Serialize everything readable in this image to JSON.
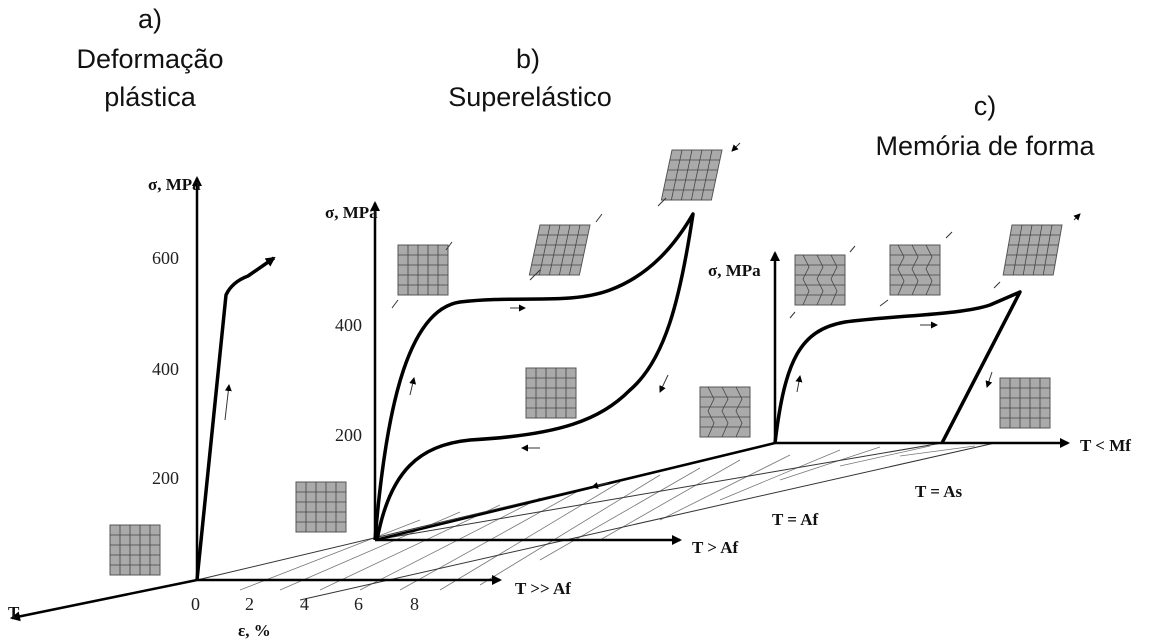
{
  "panels": [
    {
      "label": "a)",
      "title": [
        "Deformação",
        "plástica"
      ],
      "y_label": "σ, MPa",
      "y_ticks": [
        "600",
        "400",
        "200"
      ],
      "x_label": "ε, %",
      "x_ticks": [
        "0",
        "2",
        "4",
        "6",
        "8"
      ],
      "t_label": "T >> Af"
    },
    {
      "label": "b)",
      "title": [
        "Superelástico"
      ],
      "y_label": "σ, MPa",
      "y_ticks": [
        "400",
        "200"
      ],
      "t_label": "T > Af"
    },
    {
      "label": "c)",
      "title": [
        "Memória de forma"
      ],
      "y_label": "σ, MPa",
      "t_label": "T < Mf"
    }
  ],
  "temperature_axis": "T",
  "planes": [
    "T = Af",
    "T = As"
  ]
}
